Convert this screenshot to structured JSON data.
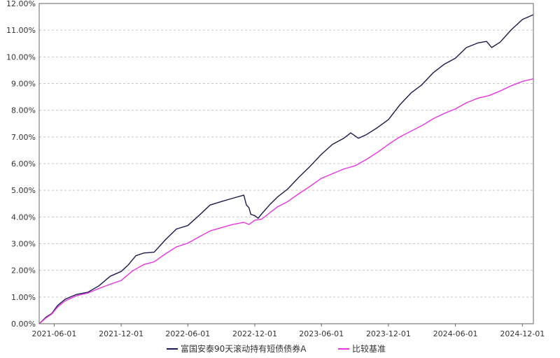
{
  "chart_data": {
    "type": "line",
    "title": "",
    "xlabel": "",
    "ylabel": "",
    "y_unit": "%",
    "ylim": [
      0,
      12
    ],
    "yticks": [
      0,
      1,
      2,
      3,
      4,
      5,
      6,
      7,
      8,
      9,
      10,
      11,
      12
    ],
    "ytick_labels": [
      "0.00%",
      "1.00%",
      "2.00%",
      "3.00%",
      "4.00%",
      "5.00%",
      "6.00%",
      "7.00%",
      "8.00%",
      "9.00%",
      "10.00%",
      "11.00%",
      "12.00%"
    ],
    "xlim": [
      "2021-04-21",
      "2024-12-31"
    ],
    "xticks": [
      "2021-06-01",
      "2021-12-01",
      "2022-06-01",
      "2022-12-01",
      "2023-06-01",
      "2023-12-01",
      "2024-06-01",
      "2024-12-01"
    ],
    "xtick_labels": [
      "2021-06-01",
      "2021-12-01",
      "2022-06-01",
      "2022-12-01",
      "2023-06-01",
      "2023-12-01",
      "2024-06-01",
      "2024-12-01"
    ],
    "grid": "horizontal dashed",
    "legend_placement": "bottom-center",
    "series": [
      {
        "name": "富国安泰90天滚动持有短债债券A",
        "color": "#1b1a4e",
        "points": [
          [
            "2021-04-21",
            0.0
          ],
          [
            "2021-05-10",
            0.25
          ],
          [
            "2021-05-25",
            0.38
          ],
          [
            "2021-06-10",
            0.68
          ],
          [
            "2021-07-01",
            0.92
          ],
          [
            "2021-08-01",
            1.1
          ],
          [
            "2021-09-01",
            1.18
          ],
          [
            "2021-10-01",
            1.42
          ],
          [
            "2021-11-01",
            1.78
          ],
          [
            "2021-12-01",
            1.96
          ],
          [
            "2021-12-20",
            2.2
          ],
          [
            "2022-01-10",
            2.55
          ],
          [
            "2022-02-01",
            2.65
          ],
          [
            "2022-03-01",
            2.68
          ],
          [
            "2022-04-01",
            3.15
          ],
          [
            "2022-05-01",
            3.55
          ],
          [
            "2022-06-01",
            3.68
          ],
          [
            "2022-07-01",
            4.05
          ],
          [
            "2022-08-01",
            4.45
          ],
          [
            "2022-09-01",
            4.58
          ],
          [
            "2022-10-01",
            4.7
          ],
          [
            "2022-11-01",
            4.82
          ],
          [
            "2022-11-08",
            4.45
          ],
          [
            "2022-11-15",
            4.35
          ],
          [
            "2022-11-20",
            4.1
          ],
          [
            "2022-12-01",
            4.05
          ],
          [
            "2022-12-10",
            3.95
          ],
          [
            "2022-12-20",
            4.12
          ],
          [
            "2023-01-10",
            4.45
          ],
          [
            "2023-02-01",
            4.75
          ],
          [
            "2023-03-01",
            5.05
          ],
          [
            "2023-04-01",
            5.5
          ],
          [
            "2023-05-01",
            5.9
          ],
          [
            "2023-06-01",
            6.35
          ],
          [
            "2023-07-01",
            6.72
          ],
          [
            "2023-08-01",
            6.95
          ],
          [
            "2023-08-20",
            7.15
          ],
          [
            "2023-09-10",
            6.95
          ],
          [
            "2023-10-01",
            7.08
          ],
          [
            "2023-11-01",
            7.35
          ],
          [
            "2023-12-01",
            7.65
          ],
          [
            "2024-01-01",
            8.2
          ],
          [
            "2024-02-01",
            8.65
          ],
          [
            "2024-03-01",
            8.95
          ],
          [
            "2024-04-01",
            9.4
          ],
          [
            "2024-05-01",
            9.72
          ],
          [
            "2024-06-01",
            9.95
          ],
          [
            "2024-07-01",
            10.35
          ],
          [
            "2024-08-01",
            10.52
          ],
          [
            "2024-08-25",
            10.58
          ],
          [
            "2024-09-08",
            10.35
          ],
          [
            "2024-10-01",
            10.55
          ],
          [
            "2024-11-01",
            11.02
          ],
          [
            "2024-12-01",
            11.4
          ],
          [
            "2024-12-31",
            11.58
          ]
        ]
      },
      {
        "name": "比较基准",
        "color": "#e834e0",
        "points": [
          [
            "2021-04-21",
            0.0
          ],
          [
            "2021-05-10",
            0.22
          ],
          [
            "2021-05-25",
            0.36
          ],
          [
            "2021-06-10",
            0.62
          ],
          [
            "2021-07-01",
            0.86
          ],
          [
            "2021-08-01",
            1.05
          ],
          [
            "2021-09-01",
            1.15
          ],
          [
            "2021-10-01",
            1.32
          ],
          [
            "2021-11-01",
            1.48
          ],
          [
            "2021-12-01",
            1.62
          ],
          [
            "2022-01-01",
            1.98
          ],
          [
            "2022-02-01",
            2.22
          ],
          [
            "2022-03-01",
            2.32
          ],
          [
            "2022-04-01",
            2.62
          ],
          [
            "2022-05-01",
            2.88
          ],
          [
            "2022-06-01",
            3.02
          ],
          [
            "2022-07-01",
            3.25
          ],
          [
            "2022-08-01",
            3.48
          ],
          [
            "2022-09-01",
            3.6
          ],
          [
            "2022-10-01",
            3.72
          ],
          [
            "2022-11-01",
            3.8
          ],
          [
            "2022-11-15",
            3.72
          ],
          [
            "2022-12-01",
            3.88
          ],
          [
            "2022-12-20",
            3.92
          ],
          [
            "2023-01-10",
            4.15
          ],
          [
            "2023-02-01",
            4.38
          ],
          [
            "2023-03-01",
            4.58
          ],
          [
            "2023-04-01",
            4.88
          ],
          [
            "2023-05-01",
            5.15
          ],
          [
            "2023-06-01",
            5.45
          ],
          [
            "2023-07-01",
            5.62
          ],
          [
            "2023-08-01",
            5.8
          ],
          [
            "2023-09-01",
            5.92
          ],
          [
            "2023-10-01",
            6.15
          ],
          [
            "2023-11-01",
            6.42
          ],
          [
            "2023-12-01",
            6.72
          ],
          [
            "2024-01-01",
            7.0
          ],
          [
            "2024-02-01",
            7.22
          ],
          [
            "2024-03-01",
            7.42
          ],
          [
            "2024-04-01",
            7.68
          ],
          [
            "2024-05-01",
            7.88
          ],
          [
            "2024-06-01",
            8.05
          ],
          [
            "2024-07-01",
            8.28
          ],
          [
            "2024-08-01",
            8.45
          ],
          [
            "2024-09-01",
            8.55
          ],
          [
            "2024-10-01",
            8.72
          ],
          [
            "2024-11-01",
            8.92
          ],
          [
            "2024-12-01",
            9.08
          ],
          [
            "2024-12-31",
            9.18
          ]
        ]
      }
    ]
  }
}
